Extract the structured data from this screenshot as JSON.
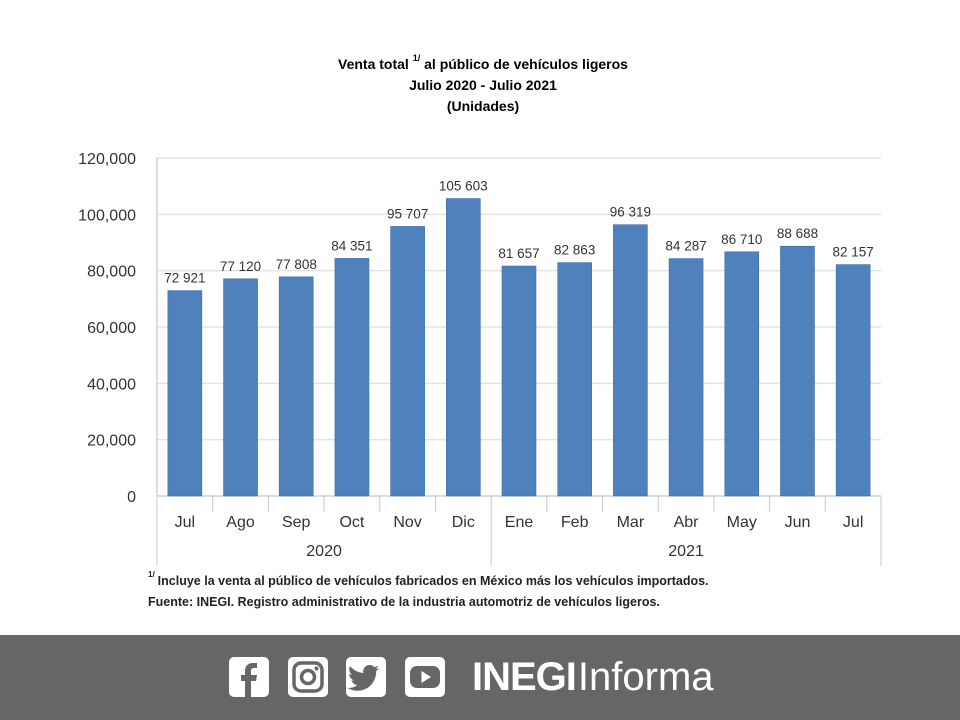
{
  "title": {
    "line1_pre": "Venta total ",
    "line1_sup": "1/",
    "line1_post": " al público de vehículos ligeros",
    "line2": "Julio 2020 - Julio 2021",
    "line3": "(Unidades)"
  },
  "chart_data": {
    "type": "bar",
    "categories": [
      "Jul",
      "Ago",
      "Sep",
      "Oct",
      "Nov",
      "Dic",
      "Ene",
      "Feb",
      "Mar",
      "Abr",
      "May",
      "Jun",
      "Jul"
    ],
    "values": [
      72921,
      77120,
      77808,
      84351,
      95707,
      105603,
      81657,
      82863,
      96319,
      84287,
      86710,
      88688,
      82157
    ],
    "data_labels": [
      "72 921",
      "77 120",
      "77 808",
      "84 351",
      "95 707",
      "105 603",
      "81 657",
      "82 863",
      "96 319",
      "84 287",
      "86 710",
      "88 688",
      "82 157"
    ],
    "year_groups": [
      {
        "label": "2020",
        "start": 0,
        "end": 5
      },
      {
        "label": "2021",
        "start": 6,
        "end": 12
      }
    ],
    "y_ticks": [
      "0",
      "20,000",
      "40,000",
      "60,000",
      "80,000",
      "100,000",
      "120,000"
    ],
    "ylim": [
      0,
      120000
    ],
    "grid": true,
    "bar_color": "#4f81bd"
  },
  "notes": {
    "footnote_sup": "1/",
    "footnote": "Incluye la venta al público de vehículos fabricados en México más los vehículos importados.",
    "source": "Fuente: INEGI. Registro administrativo de la industria automotriz de vehículos ligeros."
  },
  "footer": {
    "brand_bold": "INEGI",
    "brand_light": "Informa",
    "icons": [
      "facebook-icon",
      "instagram-icon",
      "twitter-icon",
      "youtube-icon"
    ],
    "background": "#666666"
  }
}
